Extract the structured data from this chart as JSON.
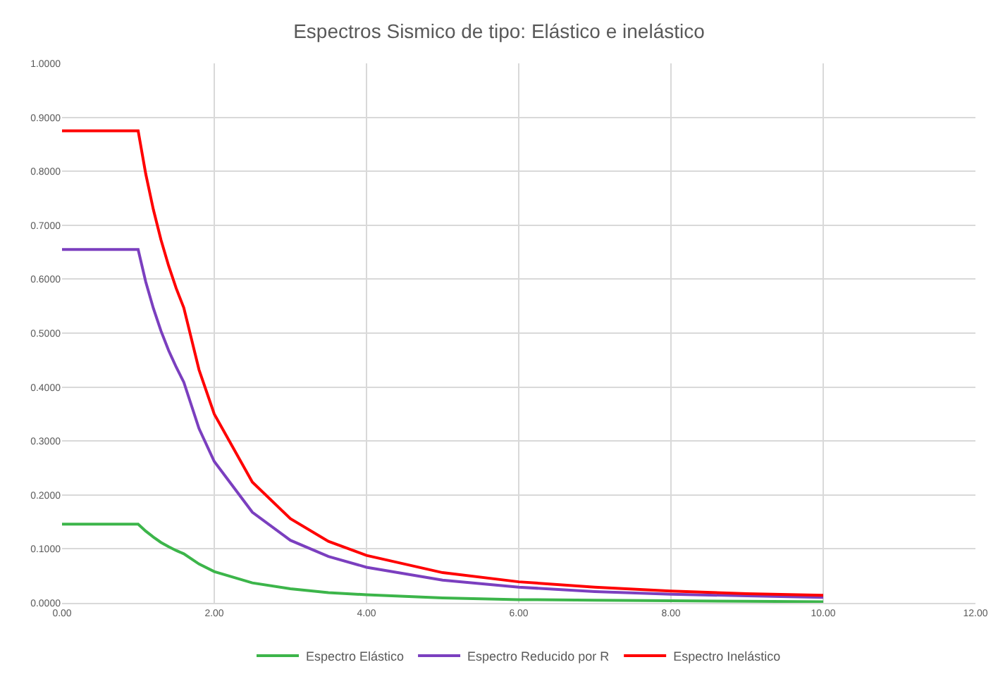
{
  "chart_data": {
    "type": "line",
    "title": "Espectros Sismico de tipo: Elástico e inelástico",
    "x": [
      0,
      1,
      1.1,
      1.2,
      1.3,
      1.4,
      1.5,
      1.6,
      1.8,
      2,
      2.5,
      3,
      3.5,
      4,
      5,
      6,
      7,
      8,
      9,
      10
    ],
    "series": [
      {
        "name": "Espectro Elástico",
        "color": "#3cb54a",
        "values": [
          0.146,
          0.146,
          0.133,
          0.122,
          0.112,
          0.104,
          0.097,
          0.091,
          0.072,
          0.058,
          0.037,
          0.026,
          0.019,
          0.015,
          0.009,
          0.006,
          0.005,
          0.004,
          0.003,
          0.002
        ]
      },
      {
        "name": "Espectro Reducido por R",
        "color": "#7b3fbf",
        "values": [
          0.655,
          0.655,
          0.595,
          0.546,
          0.504,
          0.468,
          0.437,
          0.409,
          0.323,
          0.262,
          0.168,
          0.116,
          0.086,
          0.066,
          0.042,
          0.029,
          0.021,
          0.016,
          0.013,
          0.01
        ]
      },
      {
        "name": "Espectro Inelástico",
        "color": "#ff0000",
        "values": [
          0.875,
          0.875,
          0.795,
          0.729,
          0.673,
          0.625,
          0.583,
          0.547,
          0.432,
          0.35,
          0.224,
          0.156,
          0.114,
          0.088,
          0.056,
          0.039,
          0.029,
          0.022,
          0.017,
          0.014
        ]
      }
    ],
    "xlim": [
      0,
      12
    ],
    "xticks": [
      {
        "value": 0,
        "label": "0.00"
      },
      {
        "value": 2,
        "label": "2.00"
      },
      {
        "value": 4,
        "label": "4.00"
      },
      {
        "value": 6,
        "label": "6.00"
      },
      {
        "value": 8,
        "label": "8.00"
      },
      {
        "value": 10,
        "label": "10.00"
      },
      {
        "value": 12,
        "label": "12.00"
      }
    ],
    "ylim": [
      0,
      1
    ],
    "yticks": [
      {
        "value": 0,
        "label": "0.0000"
      },
      {
        "value": 0.1,
        "label": "0.1000"
      },
      {
        "value": 0.2,
        "label": "0.2000"
      },
      {
        "value": 0.3,
        "label": "0.3000"
      },
      {
        "value": 0.4,
        "label": "0.4000"
      },
      {
        "value": 0.5,
        "label": "0.5000"
      },
      {
        "value": 0.6,
        "label": "0.6000"
      },
      {
        "value": 0.7,
        "label": "0.7000"
      },
      {
        "value": 0.8,
        "label": "0.8000"
      },
      {
        "value": 0.9,
        "label": "0.9000"
      },
      {
        "value": 1,
        "label": "1.0000"
      }
    ],
    "grid": true,
    "legend": "bottom",
    "marker": "none",
    "line_style": "solid"
  }
}
